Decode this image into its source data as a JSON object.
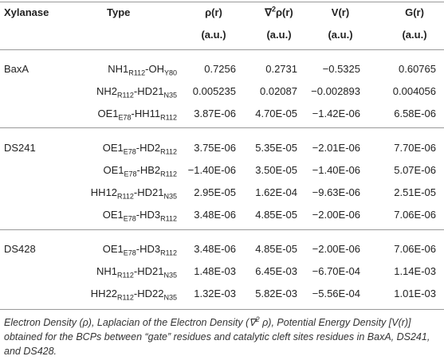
{
  "table": {
    "header": [
      {
        "parts": [
          "Xylanase"
        ]
      },
      {
        "parts": [
          "Type"
        ]
      },
      {
        "parts": [
          "ρ(r)"
        ],
        "unit": "(a.u.)"
      },
      {
        "parts": [
          "∇",
          "2",
          "ρ(r)"
        ],
        "unit": "(a.u.)"
      },
      {
        "parts": [
          "V(r)"
        ],
        "unit": "(a.u.)"
      },
      {
        "parts": [
          "G(r)"
        ],
        "unit": "(a.u.)"
      }
    ],
    "groups": [
      {
        "name": "BaxA",
        "rows": [
          {
            "type": [
              "NH1",
              "R112",
              "-OH",
              "Y80"
            ],
            "values": [
              "0.7256",
              "0.2731",
              "−0.5325",
              "0.60765"
            ]
          },
          {
            "type": [
              "NH2",
              "R112",
              "-HD21",
              "N35"
            ],
            "values": [
              "0.005235",
              "0.02087",
              "−0.002893",
              "0.004056"
            ]
          },
          {
            "type": [
              "OE1",
              "E78",
              "-HH11",
              "R112"
            ],
            "values": [
              "3.87E-06",
              "4.70E-05",
              "−1.42E-06",
              "6.58E-06"
            ]
          }
        ]
      },
      {
        "name": "DS241",
        "rows": [
          {
            "type": [
              "OE1",
              "E78",
              "-HD2",
              "R112"
            ],
            "values": [
              "3.75E-06",
              "5.35E-05",
              "−2.01E-06",
              "7.70E-06"
            ]
          },
          {
            "type": [
              "OE1",
              "E78",
              "-HB2",
              "R112"
            ],
            "values": [
              "−1.40E-06",
              "3.50E-05",
              "−1.40E-06",
              "5.07E-06"
            ]
          },
          {
            "type": [
              "HH12",
              "R112",
              "-HD21",
              "N35"
            ],
            "values": [
              "2.95E-05",
              "1.62E-04",
              "−9.63E-06",
              "2.51E-05"
            ]
          },
          {
            "type": [
              "OE1",
              "E78",
              "-HD3",
              "R112"
            ],
            "values": [
              "3.48E-06",
              "4.85E-05",
              "−2.00E-06",
              "7.06E-06"
            ]
          }
        ]
      },
      {
        "name": "DS428",
        "rows": [
          {
            "type": [
              "OE1",
              "E78",
              "-HD3",
              "R112"
            ],
            "values": [
              "3.48E-06",
              "4.85E-05",
              "−2.00E-06",
              "7.06E-06"
            ]
          },
          {
            "type": [
              "NH1",
              "R112",
              "-HD21",
              "N35"
            ],
            "values": [
              "1.48E-03",
              "6.45E-03",
              "−6.70E-04",
              "1.14E-03"
            ]
          },
          {
            "type": [
              "HH22",
              "R112",
              "-HD22",
              "N35"
            ],
            "values": [
              "1.32E-03",
              "5.82E-03",
              "−5.56E-04",
              "1.01E-03"
            ]
          }
        ]
      }
    ]
  },
  "caption": [
    "Electron Density (ρ), Laplacian of the Electron Density (∇",
    "2",
    " ρ), Potential Energy Density [V(r)] obtained for the BCPs between “gate” residues and catalytic cleft sites residues in BaxA, DS241, and DS428."
  ]
}
